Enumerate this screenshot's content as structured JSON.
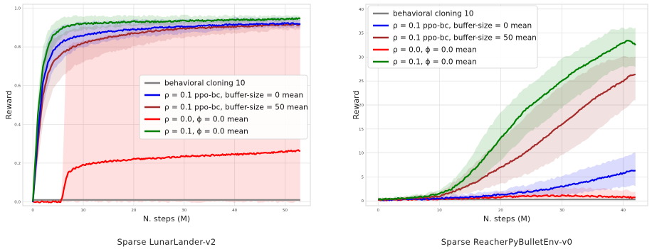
{
  "chart_data": [
    {
      "type": "line",
      "caption": "Sparse LunarLander-v2",
      "xlabel": "N. steps (M)",
      "ylabel": "Reward",
      "xlim": [
        -2,
        55
      ],
      "ylim": [
        -0.02,
        1.02
      ],
      "xticks": [
        0,
        10,
        20,
        30,
        40,
        50
      ],
      "yticks": [
        0.0,
        0.2,
        0.4,
        0.6,
        0.8,
        1.0
      ],
      "ytick_labels": [
        "0.0",
        "0.2",
        "0.4",
        "0.6",
        "0.8",
        "1.0"
      ],
      "grid": true,
      "legend_position": "center-right",
      "series": [
        {
          "key": "bc",
          "name": "behavioral cloning 10",
          "color": "#808080",
          "x": [
            0,
            53
          ],
          "y": [
            0.01,
            0.01
          ]
        },
        {
          "key": "buf0",
          "name": "ρ = 0.1  ppo-bc, buffer-size = 0  mean",
          "color": "#0000ee",
          "x": [
            0,
            1,
            2,
            3,
            4,
            6,
            8,
            10,
            15,
            20,
            25,
            30,
            35,
            40,
            45,
            50,
            53
          ],
          "y": [
            0.0,
            0.35,
            0.62,
            0.72,
            0.78,
            0.83,
            0.85,
            0.86,
            0.88,
            0.89,
            0.9,
            0.905,
            0.91,
            0.915,
            0.918,
            0.92,
            0.92
          ],
          "band_lo": [
            0.0,
            0.25,
            0.5,
            0.6,
            0.68,
            0.74,
            0.78,
            0.8,
            0.83,
            0.85,
            0.86,
            0.87,
            0.88,
            0.89,
            0.9,
            0.9,
            0.9
          ],
          "band_hi": [
            0.0,
            0.45,
            0.74,
            0.84,
            0.88,
            0.91,
            0.92,
            0.93,
            0.93,
            0.94,
            0.94,
            0.94,
            0.94,
            0.95,
            0.95,
            0.95,
            0.95
          ]
        },
        {
          "key": "buf50",
          "name": "ρ = 0.1  ppo-bc, buffer-size = 50  mean",
          "color": "#a52a2a",
          "x": [
            0,
            1,
            2,
            3,
            4,
            6,
            8,
            10,
            15,
            20,
            25,
            30,
            35,
            40,
            45,
            50,
            53
          ],
          "y": [
            0.0,
            0.3,
            0.55,
            0.66,
            0.72,
            0.77,
            0.8,
            0.82,
            0.85,
            0.87,
            0.885,
            0.895,
            0.9,
            0.905,
            0.91,
            0.915,
            0.915
          ],
          "band_lo": [
            0.0,
            0.2,
            0.4,
            0.5,
            0.58,
            0.65,
            0.7,
            0.72,
            0.77,
            0.8,
            0.83,
            0.85,
            0.86,
            0.87,
            0.88,
            0.89,
            0.89
          ],
          "band_hi": [
            0.0,
            0.42,
            0.7,
            0.8,
            0.84,
            0.87,
            0.89,
            0.9,
            0.91,
            0.92,
            0.93,
            0.93,
            0.93,
            0.94,
            0.94,
            0.94,
            0.94
          ]
        },
        {
          "key": "rho0",
          "name": "ρ = 0.0, ϕ = 0.0 mean",
          "color": "#ff0000",
          "x": [
            0,
            5.5,
            5.8,
            6.2,
            6.6,
            7,
            8,
            10,
            12,
            15,
            18,
            20,
            25,
            30,
            35,
            40,
            45,
            50,
            53
          ],
          "y": [
            0.0,
            0.0,
            0.02,
            0.07,
            0.12,
            0.15,
            0.17,
            0.19,
            0.2,
            0.21,
            0.215,
            0.22,
            0.225,
            0.235,
            0.24,
            0.245,
            0.25,
            0.26,
            0.265
          ],
          "band_lo": [
            0.0,
            0.0,
            0.0,
            0.0,
            0.0,
            0.0,
            0.0,
            0.0,
            0.0,
            0.0,
            0.0,
            0.0,
            0.0,
            0.0,
            0.0,
            0.0,
            0.0,
            0.0,
            0.0
          ],
          "band_hi": [
            0.0,
            0.0,
            0.1,
            0.4,
            0.75,
            0.8,
            0.82,
            0.83,
            0.84,
            0.86,
            0.87,
            0.88,
            0.89,
            0.9,
            0.9,
            0.9,
            0.91,
            0.91,
            0.91
          ]
        },
        {
          "key": "rho01",
          "name": "ρ = 0.1, ϕ = 0.0 mean",
          "color": "#008000",
          "x": [
            0,
            1,
            2,
            3,
            4,
            6,
            8,
            10,
            15,
            20,
            25,
            30,
            35,
            40,
            45,
            50,
            53
          ],
          "y": [
            0.0,
            0.45,
            0.7,
            0.8,
            0.86,
            0.9,
            0.915,
            0.92,
            0.925,
            0.93,
            0.93,
            0.935,
            0.935,
            0.94,
            0.94,
            0.945,
            0.945
          ],
          "band_lo": [
            0.0,
            0.35,
            0.6,
            0.72,
            0.8,
            0.86,
            0.88,
            0.89,
            0.9,
            0.91,
            0.91,
            0.92,
            0.92,
            0.92,
            0.93,
            0.93,
            0.93
          ],
          "band_hi": [
            0.0,
            0.55,
            0.8,
            0.88,
            0.92,
            0.95,
            0.96,
            0.96,
            0.96,
            0.96,
            0.96,
            0.96,
            0.96,
            0.96,
            0.96,
            0.96,
            0.96
          ]
        }
      ]
    },
    {
      "type": "line",
      "caption": "Sparse ReacherPyBulletEnv-v0",
      "xlabel": "N. steps (M)",
      "ylabel": "Reward",
      "xlim": [
        -2,
        44
      ],
      "ylim": [
        -1,
        41
      ],
      "xticks": [
        0,
        10,
        20,
        30,
        40
      ],
      "yticks": [
        0,
        5,
        10,
        15,
        20,
        25,
        30,
        35,
        40
      ],
      "ytick_labels": [
        "0",
        "5",
        "10",
        "15",
        "20",
        "25",
        "30",
        "35",
        "40"
      ],
      "grid": true,
      "legend_position": "top-left",
      "series": [
        {
          "key": "bc",
          "name": "behavioral cloning 10",
          "color": "#808080",
          "x": [
            0,
            42
          ],
          "y": [
            0.3,
            0.3
          ]
        },
        {
          "key": "buf0",
          "name": "ρ = 0.1  ppo-bc, buffer-size = 0  mean",
          "color": "#0000ee",
          "x": [
            0,
            5,
            10,
            15,
            20,
            25,
            28,
            30,
            32,
            34,
            36,
            38,
            40,
            41,
            42
          ],
          "y": [
            0.2,
            0.3,
            0.5,
            0.8,
            1.3,
            2.0,
            2.5,
            3.0,
            3.5,
            4.0,
            4.6,
            5.2,
            5.8,
            6.2,
            6.4
          ],
          "band_lo": [
            0.0,
            0.1,
            0.2,
            0.4,
            0.6,
            0.9,
            1.1,
            1.3,
            1.5,
            1.8,
            2.1,
            2.5,
            2.9,
            3.1,
            3.3
          ],
          "band_hi": [
            0.4,
            0.5,
            0.9,
            1.5,
            2.2,
            3.5,
            4.5,
            5.2,
            6.0,
            6.8,
            7.6,
            8.4,
            9.2,
            9.6,
            10.0
          ]
        },
        {
          "key": "buf50",
          "name": "ρ = 0.1  ppo-bc, buffer-size = 50  mean",
          "color": "#a52a2a",
          "x": [
            0,
            5,
            10,
            12,
            14,
            16,
            18,
            20,
            22,
            24,
            26,
            28,
            30,
            32,
            34,
            36,
            38,
            40,
            41,
            42
          ],
          "y": [
            0.3,
            0.5,
            1.0,
            1.8,
            2.8,
            4.0,
            5.5,
            7.0,
            8.5,
            10.0,
            12.0,
            14.0,
            16.0,
            18.0,
            20.0,
            22.0,
            23.5,
            25.0,
            26.0,
            26.5
          ],
          "band_lo": [
            0.1,
            0.2,
            0.5,
            0.9,
            1.4,
            2.0,
            2.8,
            3.5,
            4.5,
            5.5,
            6.5,
            8.0,
            9.5,
            11.0,
            13.0,
            15.0,
            17.0,
            19.0,
            20.0,
            21.0
          ],
          "band_hi": [
            0.5,
            0.8,
            1.8,
            3.5,
            5.5,
            8.0,
            10.5,
            13.0,
            15.0,
            17.5,
            20.0,
            22.0,
            24.0,
            25.5,
            27.0,
            28.5,
            29.5,
            30.0,
            30.0,
            30.0
          ]
        },
        {
          "key": "rho0",
          "name": "ρ = 0.0, ϕ = 0.0 mean",
          "color": "#ff0000",
          "x": [
            0,
            5,
            10,
            15,
            20,
            25,
            30,
            35,
            40,
            42
          ],
          "y": [
            0.2,
            0.3,
            0.4,
            0.6,
            0.8,
            1.0,
            1.1,
            1.0,
            0.8,
            0.7
          ],
          "band_lo": [
            0.0,
            0.1,
            0.1,
            0.2,
            0.3,
            0.4,
            0.5,
            0.4,
            0.3,
            0.3
          ],
          "band_hi": [
            0.4,
            0.5,
            0.8,
            1.2,
            1.8,
            2.4,
            2.8,
            2.6,
            2.2,
            2.0
          ]
        },
        {
          "key": "rho01",
          "name": "ρ = 0.1, ϕ = 0.0 mean",
          "color": "#008000",
          "x": [
            0,
            5,
            8,
            10,
            12,
            14,
            16,
            18,
            20,
            22,
            24,
            26,
            28,
            30,
            32,
            34,
            36,
            38,
            40,
            41,
            42
          ],
          "y": [
            0.3,
            0.6,
            1.0,
            1.5,
            2.5,
            4.5,
            7.0,
            10.0,
            13.0,
            16.0,
            19.0,
            21.0,
            23.0,
            25.0,
            27.0,
            28.5,
            30.0,
            31.5,
            33.0,
            33.5,
            32.5
          ],
          "band_lo": [
            0.1,
            0.3,
            0.6,
            0.9,
            1.5,
            2.5,
            4.0,
            6.0,
            8.5,
            11.0,
            13.5,
            15.5,
            17.5,
            19.5,
            21.5,
            23.0,
            25.0,
            27.0,
            28.0,
            28.0,
            28.0
          ],
          "band_hi": [
            0.5,
            1.0,
            1.6,
            2.4,
            4.0,
            7.0,
            11.0,
            15.0,
            18.5,
            21.0,
            23.5,
            25.5,
            27.5,
            29.5,
            31.0,
            32.5,
            34.0,
            35.5,
            36.0,
            36.0,
            36.0
          ]
        }
      ]
    }
  ]
}
